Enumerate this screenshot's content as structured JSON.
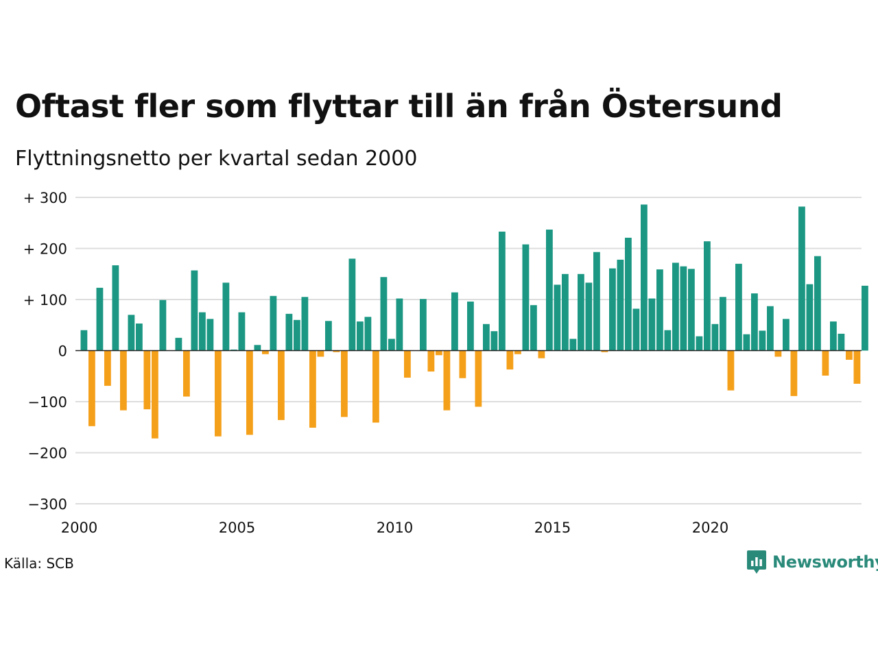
{
  "header": {
    "title": "Oftast fler som flyttar till än från Östersund",
    "subtitle": "Flyttningsnetto per kvartal sedan 2000"
  },
  "footer": {
    "source": "Källa: SCB",
    "brand": "Newsworthy"
  },
  "colors": {
    "positive": "#1b9783",
    "negative": "#f5a01a",
    "grid": "#dddddd",
    "zero": "#222222",
    "brand": "#2a8a7a"
  },
  "icons": {
    "brand_logo": "newsworthy-logo-icon"
  },
  "chart_data": {
    "type": "bar",
    "title": "Oftast fler som flyttar till än från Östersund",
    "subtitle": "Flyttningsnetto per kvartal sedan 2000",
    "xlabel": "",
    "ylabel": "",
    "x_start": "2000 Q1",
    "x_tick_labels": [
      "2000",
      "2005",
      "2010",
      "2015",
      "2020"
    ],
    "y_tick_labels": [
      "+ 300",
      "+ 200",
      "+ 100",
      "0",
      "−100",
      "−200",
      "−300"
    ],
    "y_ticks": [
      300,
      200,
      100,
      0,
      -100,
      -200,
      -300
    ],
    "ylim": [
      -300,
      300
    ],
    "grid": true,
    "values": [
      40,
      -148,
      123,
      -69,
      167,
      -117,
      70,
      53,
      -115,
      -172,
      99,
      0,
      25,
      -90,
      157,
      75,
      62,
      -168,
      133,
      2,
      75,
      -165,
      11,
      -7,
      107,
      -136,
      72,
      60,
      105,
      -151,
      -12,
      58,
      -3,
      -130,
      180,
      57,
      66,
      -141,
      144,
      23,
      102,
      -53,
      0,
      101,
      -41,
      -9,
      -117,
      114,
      -54,
      96,
      -110,
      52,
      38,
      233,
      -37,
      -7,
      208,
      89,
      -15,
      237,
      129,
      150,
      23,
      150,
      133,
      193,
      -3,
      161,
      178,
      221,
      82,
      286,
      102,
      159,
      40,
      172,
      165,
      160,
      28,
      214,
      52,
      105,
      -78,
      170,
      32,
      112,
      39,
      87,
      -12,
      62,
      -89,
      282,
      130,
      185,
      -49,
      57,
      33,
      -18,
      -65,
      127
    ]
  }
}
